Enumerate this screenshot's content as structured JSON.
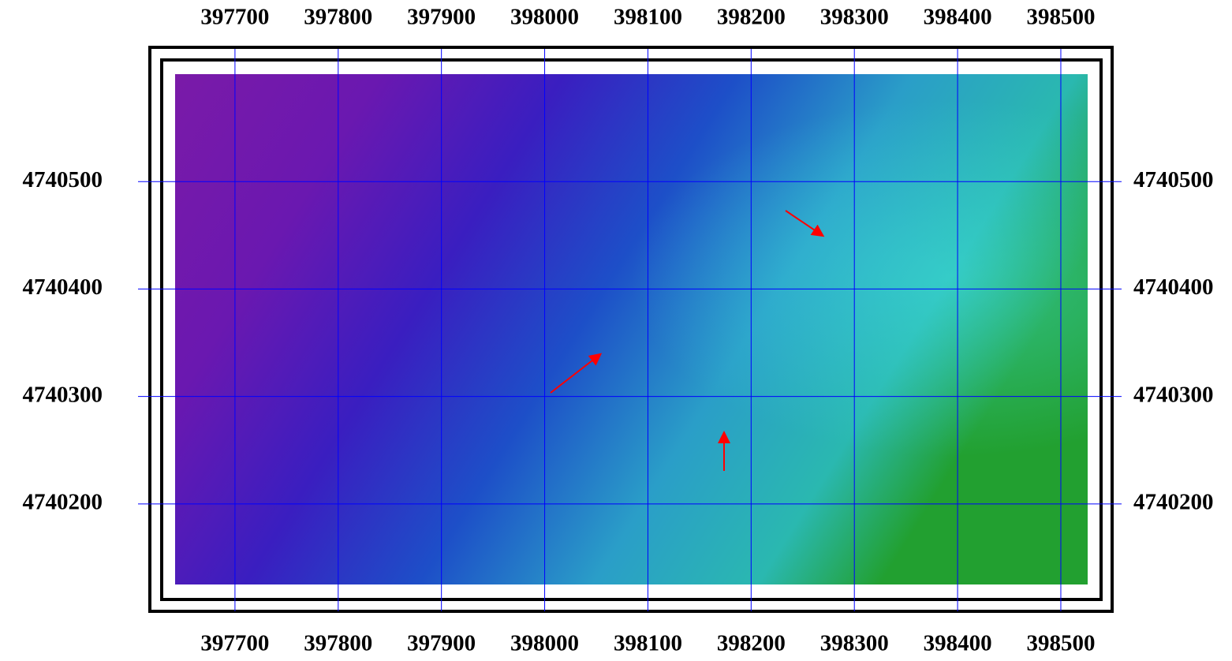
{
  "chart_data": {
    "type": "map",
    "xlim": [
      397642,
      398526
    ],
    "ylim": [
      4740125,
      4740600
    ],
    "xticks": [
      397700,
      397800,
      397900,
      398000,
      398100,
      398200,
      398300,
      398400,
      398500
    ],
    "yticks": [
      4740200,
      4740300,
      4740400,
      4740500
    ],
    "grid": true,
    "grid_color": "#0000ff"
  }
}
